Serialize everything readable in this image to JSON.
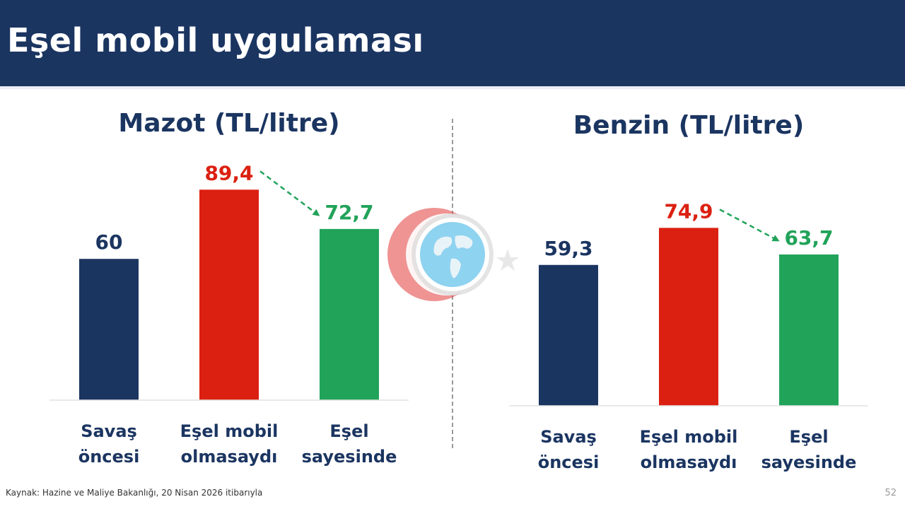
{
  "header": {
    "title": "Eşel mobil uygulaması"
  },
  "footer": {
    "source": "Kaynak: Hazine ve Maliye Bakanlığı, 20 Nisan 2026 itibarıyla",
    "page_number": "52"
  },
  "colors": {
    "header_bg": "#1b3561",
    "navy": "#1b3561",
    "red": "#db2011",
    "green": "#21a35a"
  },
  "chart_data": [
    {
      "type": "bar",
      "title": "Mazot (TL/litre)",
      "categories": [
        [
          "Savaş",
          "öncesi"
        ],
        [
          "Eşel mobil",
          "olmasaydı"
        ],
        [
          "Eşel",
          "sayesinde"
        ]
      ],
      "values": [
        60,
        89.4,
        72.7
      ],
      "value_labels": [
        "60",
        "89,4",
        "72,7"
      ],
      "bar_colors": [
        "#1b3561",
        "#db2011",
        "#21a35a"
      ],
      "annotation": "dashed green arrow from 89,4 to 72,7",
      "ylim": [
        0,
        100
      ],
      "grid": false
    },
    {
      "type": "bar",
      "title": "Benzin (TL/litre)",
      "categories": [
        [
          "Savaş",
          "öncesi"
        ],
        [
          "Eşel mobil",
          "olmasaydı"
        ],
        [
          "Eşel",
          "sayesinde"
        ]
      ],
      "values": [
        59.3,
        74.9,
        63.7
      ],
      "value_labels": [
        "59,3",
        "74,9",
        "63,7"
      ],
      "bar_colors": [
        "#1b3561",
        "#db2011",
        "#21a35a"
      ],
      "annotation": "dashed green arrow from 74,9 to 63,7",
      "ylim": [
        0,
        100
      ],
      "grid": false
    }
  ],
  "logo": {
    "icon": "globe-crescent-star-icon"
  }
}
